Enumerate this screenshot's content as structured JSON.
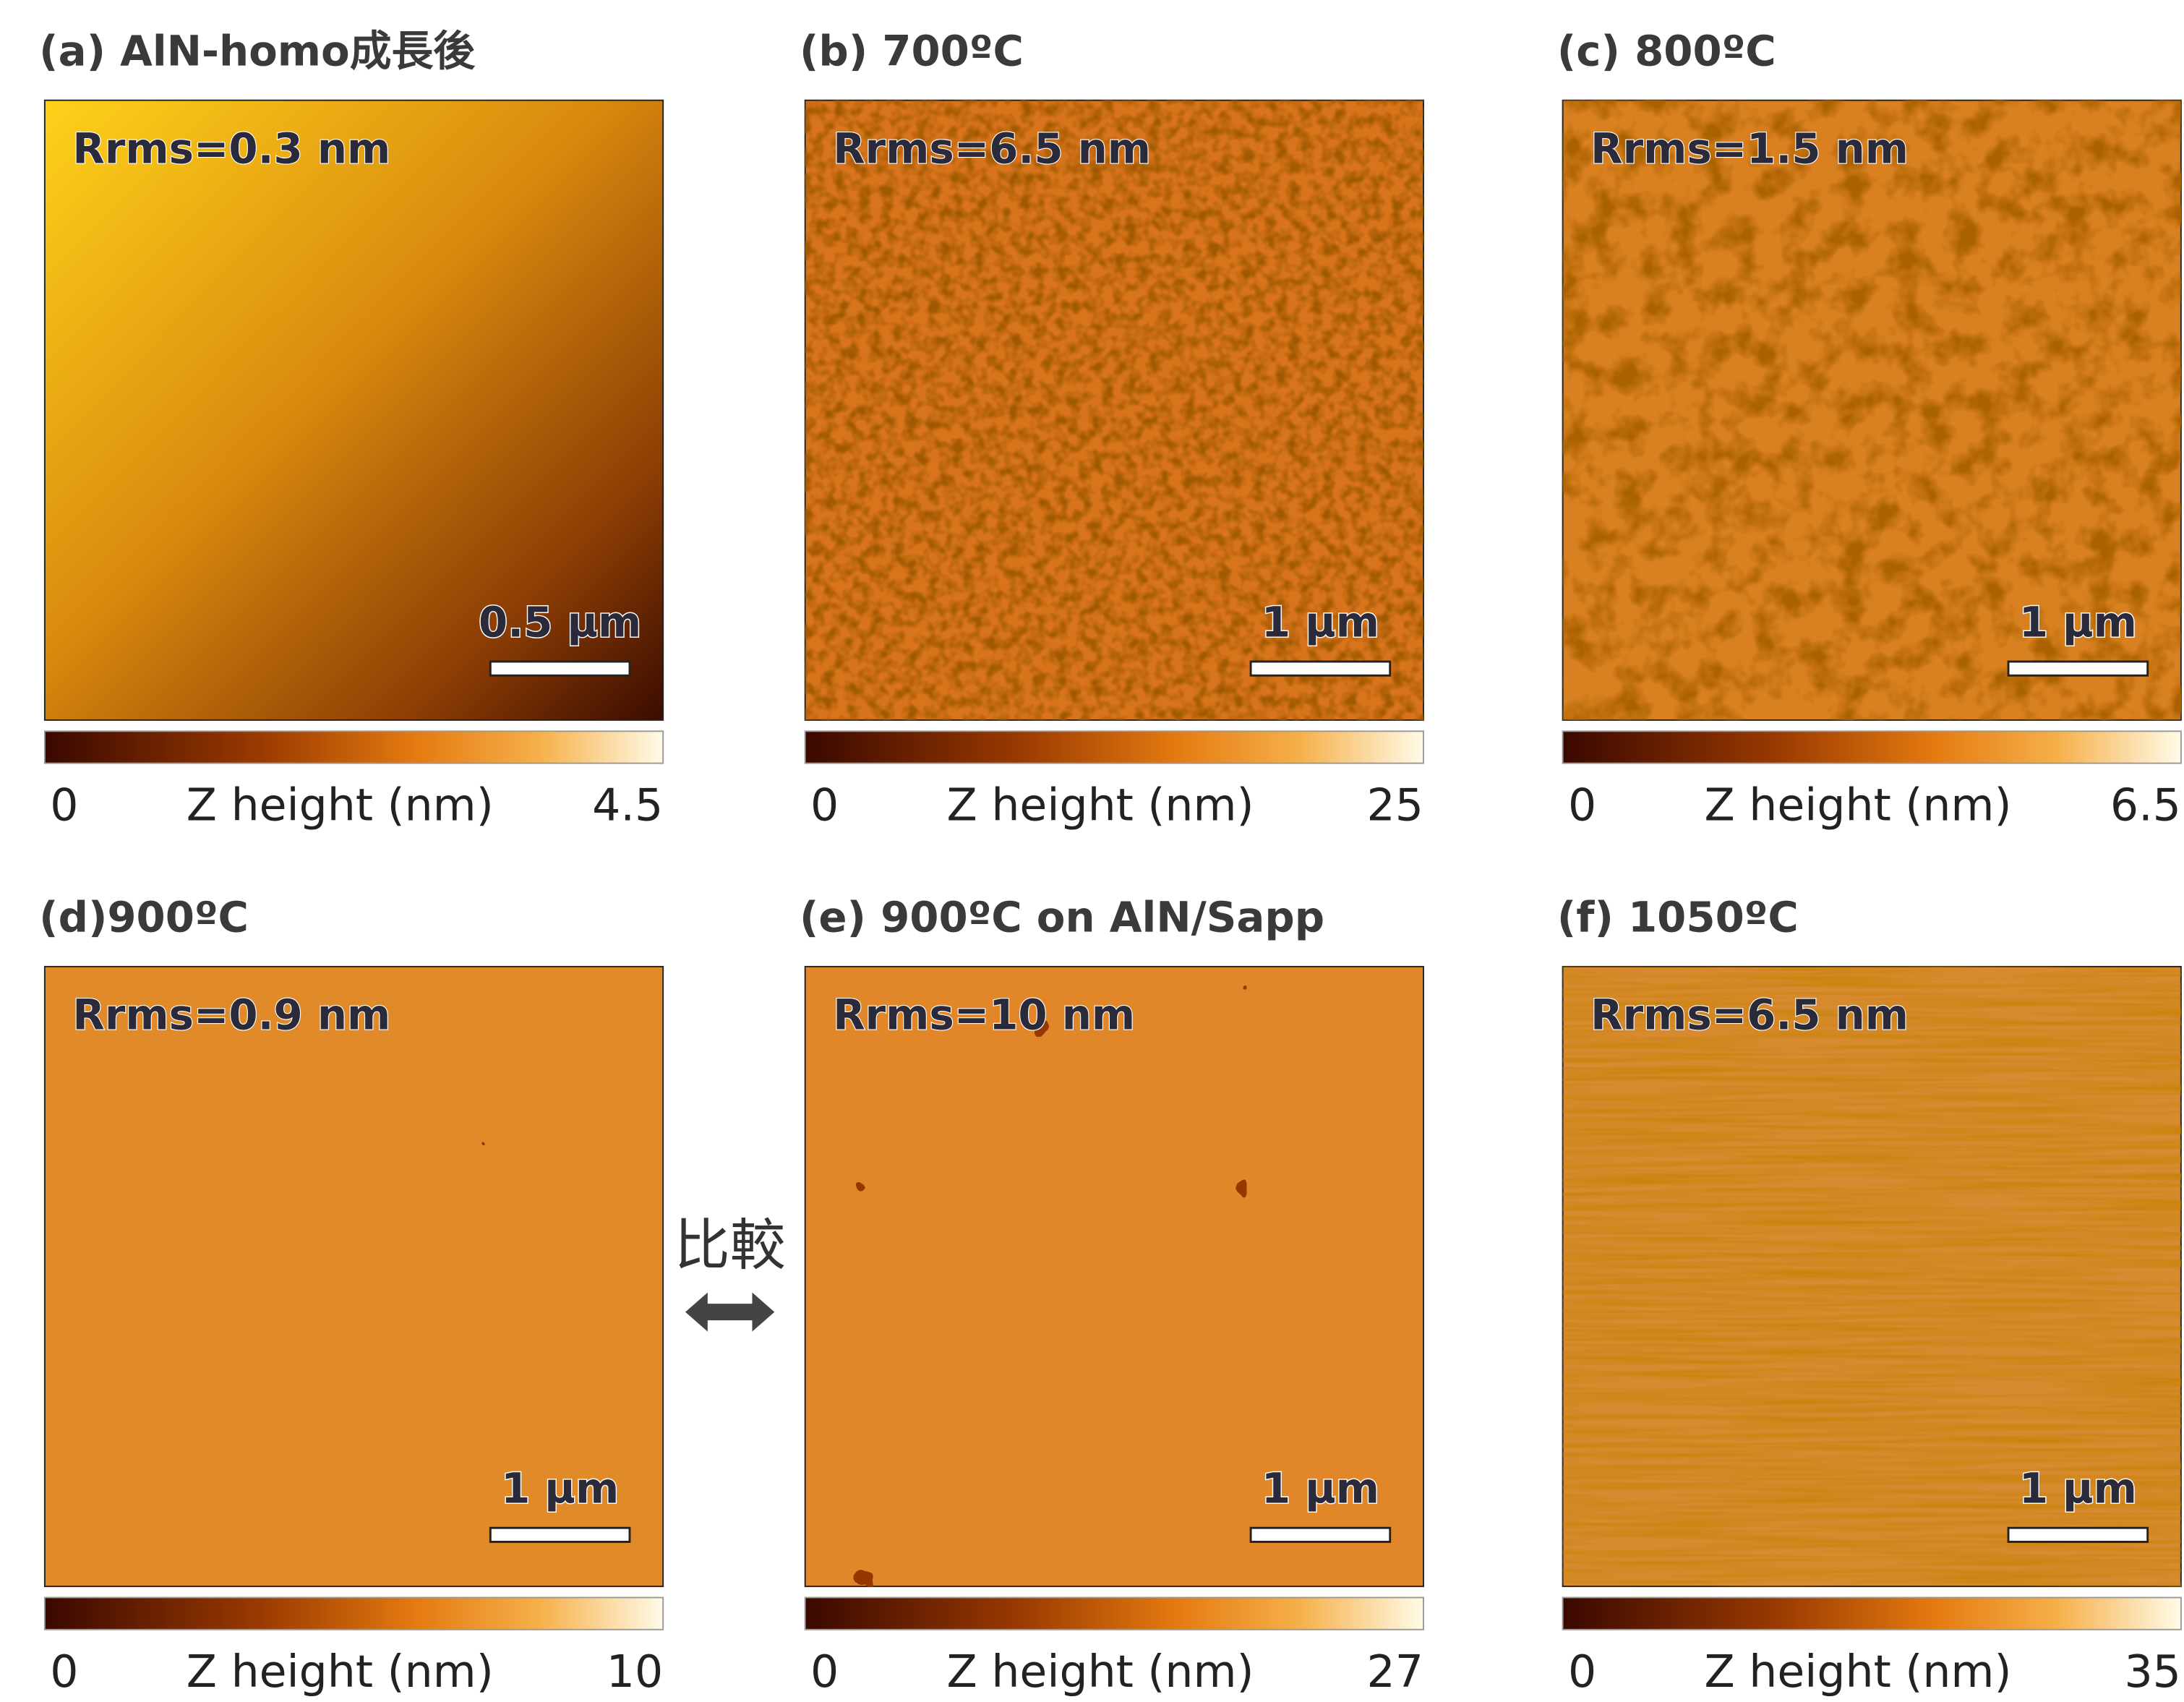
{
  "panels": [
    {
      "title": "(a) AlN-homo成長後",
      "rrms": "Rrms=0.3 nm",
      "scale_bar": "0.5 µm",
      "colorbar_min": 0,
      "colorbar_label": "Z height (nm)",
      "colorbar_max": 4.5
    },
    {
      "title": "(b) 700ºC",
      "rrms": "Rrms=6.5 nm",
      "scale_bar": "1 µm",
      "colorbar_min": 0,
      "colorbar_label": "Z height (nm)",
      "colorbar_max": 25
    },
    {
      "title": "(c) 800ºC",
      "rrms": "Rrms=1.5 nm",
      "scale_bar": "1 µm",
      "colorbar_min": 0,
      "colorbar_label": "Z height (nm)",
      "colorbar_max": 6.5
    },
    {
      "title": "(d)900ºC",
      "rrms": "Rrms=0.9 nm",
      "scale_bar": "1 µm",
      "colorbar_min": 0,
      "colorbar_label": "Z height (nm)",
      "colorbar_max": 10
    },
    {
      "title": "(e) 900ºC on AlN/Sapp",
      "rrms": "Rrms=10 nm",
      "scale_bar": "1 µm",
      "colorbar_min": 0,
      "colorbar_label": "Z height (nm)",
      "colorbar_max": 27
    },
    {
      "title": "(f) 1050ºC",
      "rrms": "Rrms=6.5 nm",
      "scale_bar": "1 µm",
      "colorbar_min": 0,
      "colorbar_label": "Z height (nm)",
      "colorbar_max": 35
    }
  ],
  "comparison": "比較"
}
